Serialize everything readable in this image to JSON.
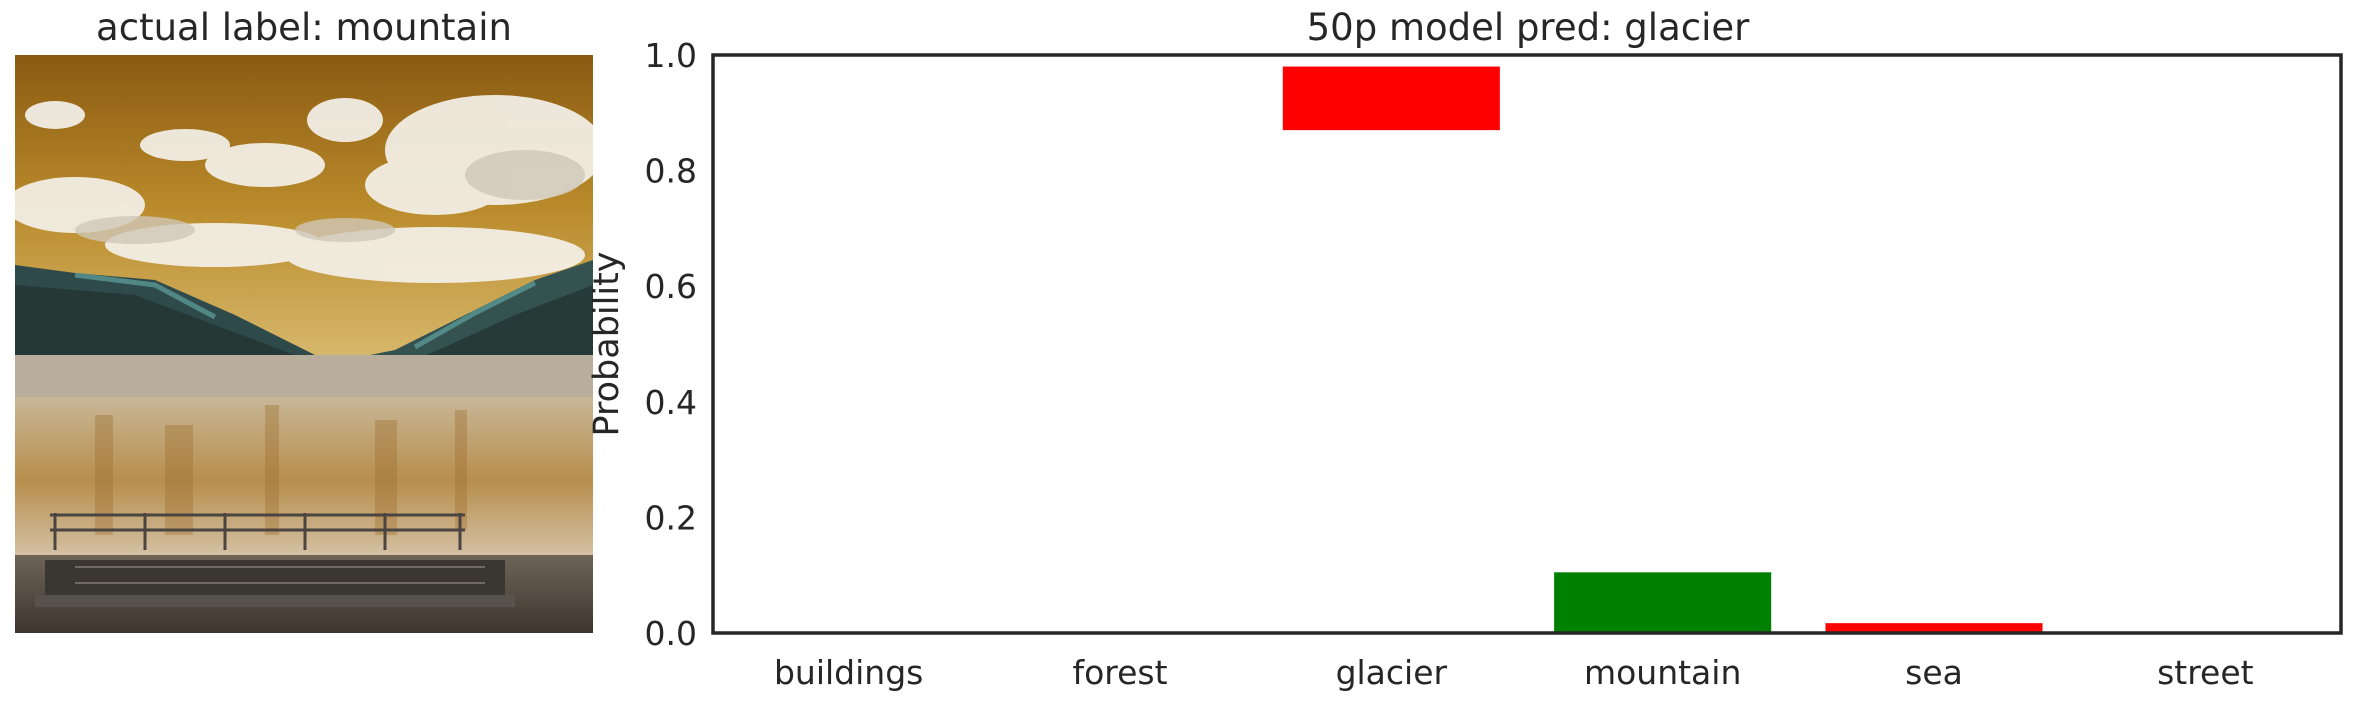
{
  "image_panel": {
    "title": "actual label: mountain",
    "image_description": "photo-mountain-lake-pier"
  },
  "colors": {
    "wrong": "#ff0000",
    "correct": "#008000",
    "axis": "#262626"
  },
  "chart_data": {
    "type": "bar",
    "title": "50p model pred: glacier",
    "xlabel": "",
    "ylabel": "Probability",
    "ylim": [
      0,
      1
    ],
    "yticks": [
      "0.0",
      "0.2",
      "0.4",
      "0.6",
      "0.8",
      "1.0"
    ],
    "categories": [
      "buildings",
      "forest",
      "glacier",
      "mountain",
      "sea",
      "street"
    ],
    "bars": [
      {
        "category": "buildings",
        "bottom": 0.0,
        "top": 0.0,
        "color": "#ff0000"
      },
      {
        "category": "forest",
        "bottom": 0.0,
        "top": 0.0,
        "color": "#ff0000"
      },
      {
        "category": "glacier",
        "bottom": 0.87,
        "top": 0.98,
        "color": "#ff0000"
      },
      {
        "category": "mountain",
        "bottom": 0.0,
        "top": 0.105,
        "color": "#008000"
      },
      {
        "category": "sea",
        "bottom": 0.0,
        "top": 0.017,
        "color": "#ff0000"
      },
      {
        "category": "street",
        "bottom": 0.0,
        "top": 0.0,
        "color": "#ff0000"
      }
    ],
    "grid": false,
    "legend": "none"
  }
}
